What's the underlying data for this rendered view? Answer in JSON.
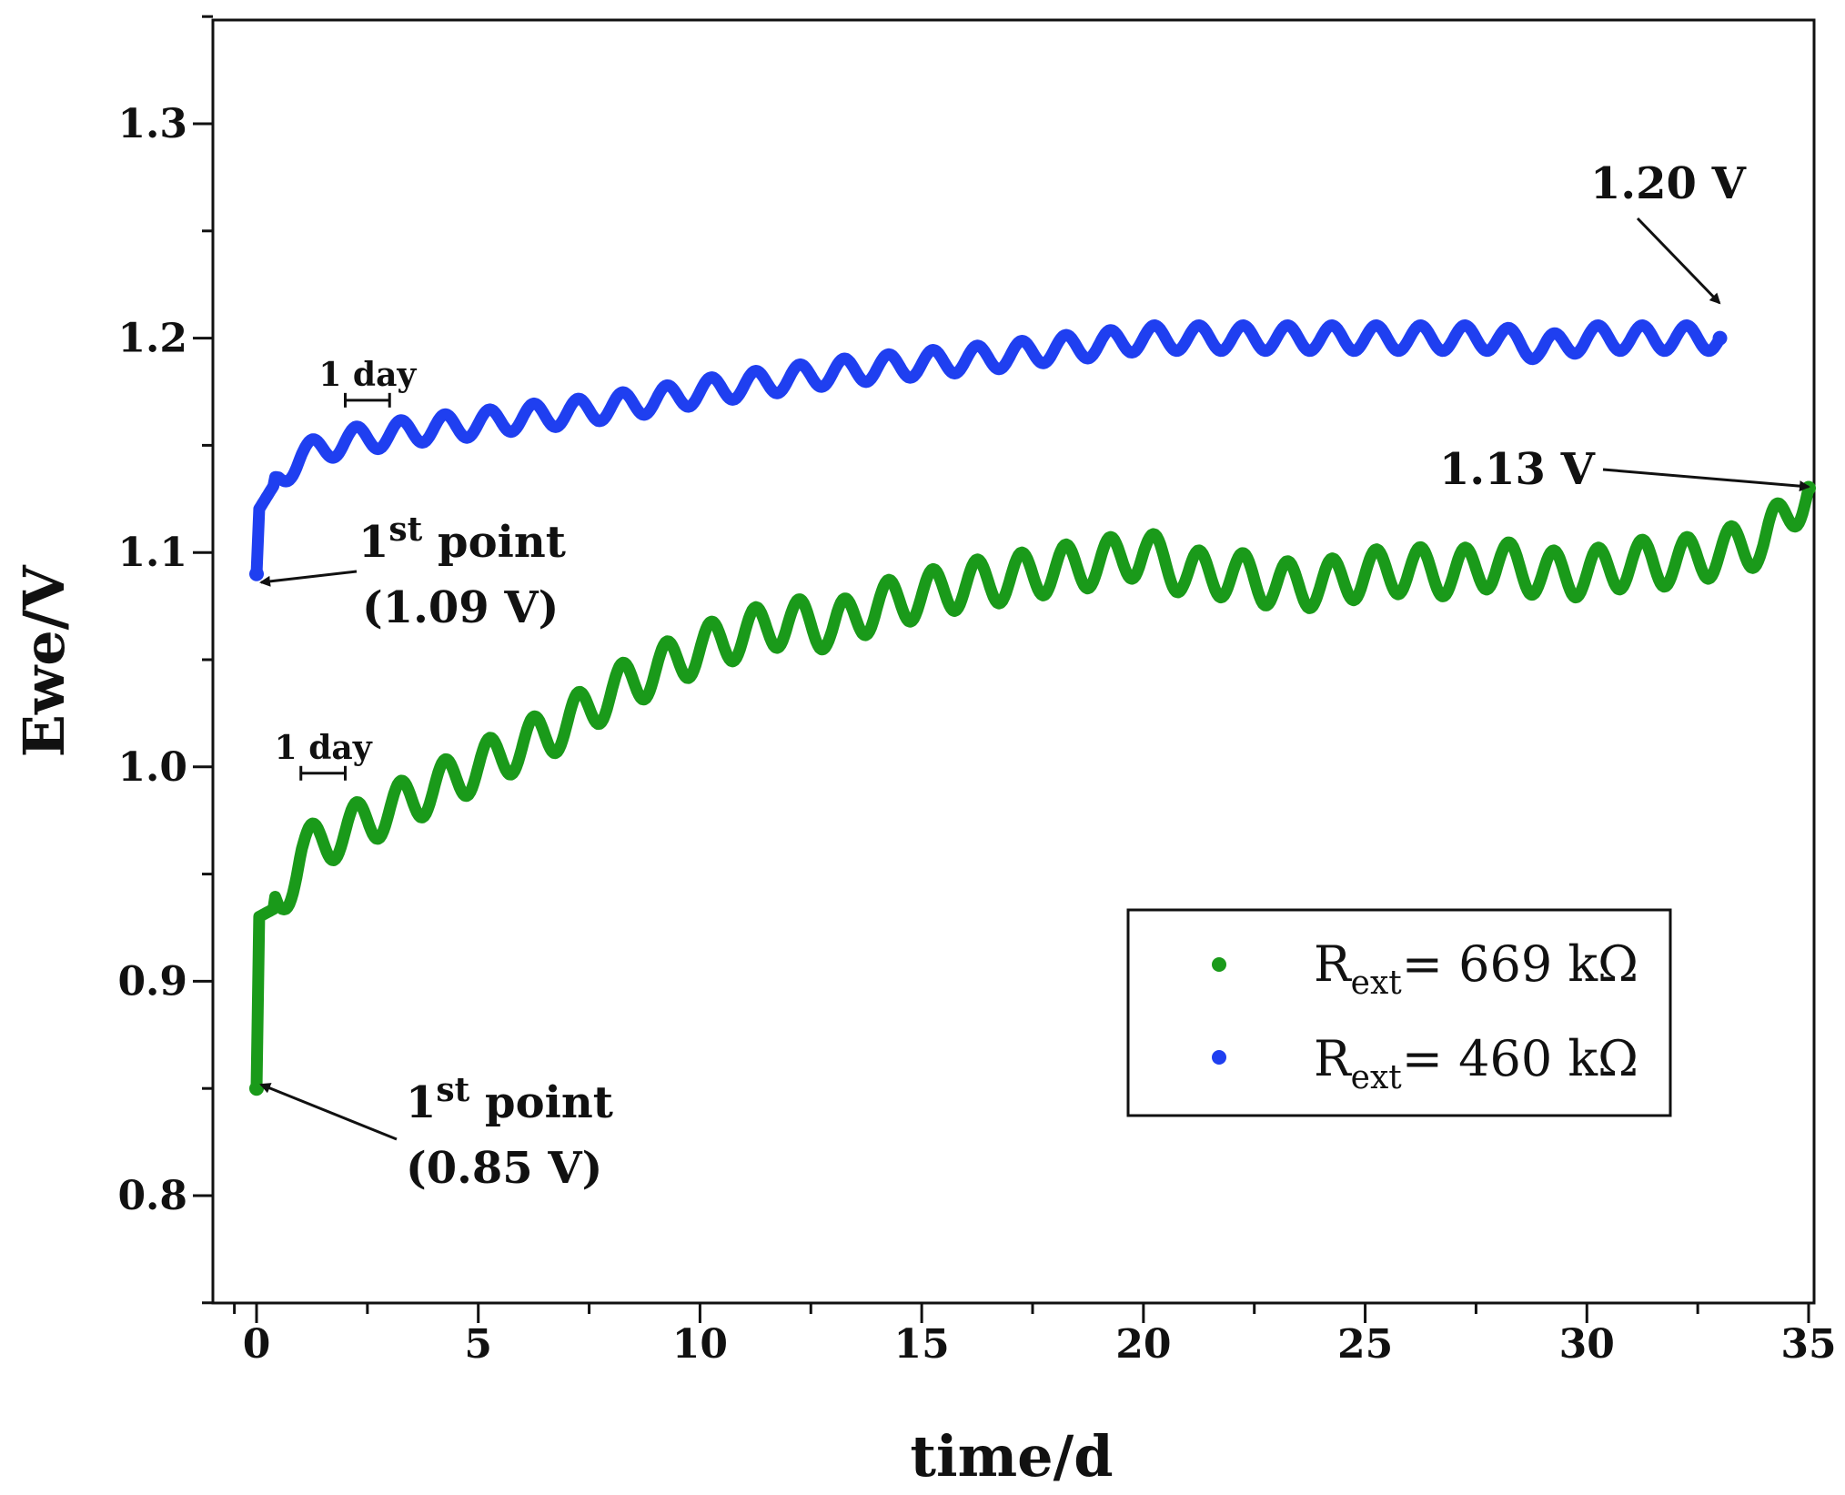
{
  "chart_data": {
    "type": "scatter",
    "xlabel": "time/d",
    "ylabel": "Ewe/V",
    "xlim": [
      -1,
      35
    ],
    "ylim": [
      0.75,
      1.35
    ],
    "x_ticks": [
      "0",
      "5",
      "10",
      "15",
      "20",
      "25",
      "30",
      "35"
    ],
    "y_ticks": [
      "0.8",
      "0.9",
      "1.0",
      "1.1",
      "1.2",
      "1.3"
    ],
    "grid": false,
    "legend_position": "bottom-right",
    "series": [
      {
        "name_main": "R",
        "name_sub": "ext",
        "name_rest": "= 669 kΩ",
        "color": "#1a9a1a",
        "x_end": 35,
        "oscillation_period_days": 1,
        "points": [
          [
            0,
            0.85
          ],
          [
            0.05,
            0.93
          ],
          [
            0.5,
            0.935
          ],
          [
            1,
            0.96
          ],
          [
            2,
            0.97
          ],
          [
            3,
            0.98
          ],
          [
            4,
            0.99
          ],
          [
            5,
            1.0
          ],
          [
            6,
            1.01
          ],
          [
            7,
            1.02
          ],
          [
            8,
            1.035
          ],
          [
            9,
            1.045
          ],
          [
            10,
            1.055
          ],
          [
            11,
            1.062
          ],
          [
            12,
            1.068
          ],
          [
            13,
            1.065
          ],
          [
            14,
            1.075
          ],
          [
            15,
            1.08
          ],
          [
            16,
            1.085
          ],
          [
            17,
            1.088
          ],
          [
            18,
            1.092
          ],
          [
            19,
            1.095
          ],
          [
            20,
            1.1
          ],
          [
            21,
            1.09
          ],
          [
            22,
            1.09
          ],
          [
            23,
            1.085
          ],
          [
            24,
            1.085
          ],
          [
            25,
            1.09
          ],
          [
            26,
            1.092
          ],
          [
            27,
            1.09
          ],
          [
            28,
            1.095
          ],
          [
            29,
            1.09
          ],
          [
            30,
            1.09
          ],
          [
            31,
            1.095
          ],
          [
            32,
            1.095
          ],
          [
            33,
            1.1
          ],
          [
            34,
            1.105
          ],
          [
            35,
            1.13
          ]
        ]
      },
      {
        "name_main": "R",
        "name_sub": "ext",
        "name_rest": "= 460 kΩ",
        "color": "#1f3ff0",
        "x_end": 33,
        "oscillation_period_days": 1,
        "points": [
          [
            0,
            1.09
          ],
          [
            0.05,
            1.12
          ],
          [
            0.5,
            1.135
          ],
          [
            1,
            1.145
          ],
          [
            2,
            1.152
          ],
          [
            3,
            1.155
          ],
          [
            4,
            1.158
          ],
          [
            5,
            1.16
          ],
          [
            6,
            1.163
          ],
          [
            7,
            1.165
          ],
          [
            8,
            1.168
          ],
          [
            9,
            1.171
          ],
          [
            10,
            1.175
          ],
          [
            11,
            1.178
          ],
          [
            12,
            1.181
          ],
          [
            13,
            1.184
          ],
          [
            14,
            1.186
          ],
          [
            15,
            1.188
          ],
          [
            16,
            1.19
          ],
          [
            17,
            1.192
          ],
          [
            18,
            1.195
          ],
          [
            19,
            1.197
          ],
          [
            20,
            1.2
          ],
          [
            21,
            1.2
          ],
          [
            22,
            1.2
          ],
          [
            23,
            1.2
          ],
          [
            24,
            1.2
          ],
          [
            25,
            1.2
          ],
          [
            26,
            1.2
          ],
          [
            27,
            1.2
          ],
          [
            28,
            1.2
          ],
          [
            29,
            1.195
          ],
          [
            30,
            1.2
          ],
          [
            31,
            1.2
          ],
          [
            32,
            1.2
          ],
          [
            33,
            1.2
          ]
        ]
      }
    ],
    "annotations": [
      {
        "id": "blue-end",
        "text": "1.20 V",
        "point": [
          33,
          1.2
        ]
      },
      {
        "id": "green-end",
        "text": "1.13 V",
        "point": [
          35,
          1.13
        ]
      },
      {
        "id": "blue-first",
        "line1_main": "1",
        "line1_sup": "st",
        "line1_rest": " point",
        "line2": "(1.09 V)",
        "point": [
          0,
          1.09
        ]
      },
      {
        "id": "green-first",
        "line1_main": "1",
        "line1_sup": "st",
        "line1_rest": " point",
        "line2": "(0.85 V)",
        "point": [
          0,
          0.85
        ]
      },
      {
        "id": "blue-day",
        "text": "1 day",
        "span": [
          2,
          3
        ],
        "y": 1.16
      },
      {
        "id": "green-day",
        "text": "1 day",
        "span": [
          1,
          2
        ],
        "y": 0.986
      }
    ]
  }
}
